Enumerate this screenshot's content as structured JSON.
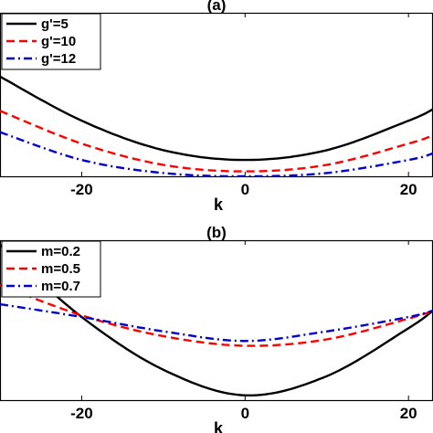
{
  "chart_data": [
    {
      "type": "line",
      "panel_label": "(a)",
      "xlabel": "k",
      "ylabel": "",
      "xlim": [
        -30,
        23
      ],
      "ylim": [
        0,
        1
      ],
      "xticks": [
        -20,
        0,
        20
      ],
      "xtick_labels": [
        "-20",
        "0",
        "20"
      ],
      "legend_placement": "top-left",
      "grid": false,
      "series": [
        {
          "name": "g'=5",
          "color": "#000000",
          "dash": "solid",
          "values": [
            [
              -30,
              0.61
            ],
            [
              -20,
              0.34
            ],
            [
              -10,
              0.16
            ],
            [
              0,
              0.1
            ],
            [
              10,
              0.16
            ],
            [
              20,
              0.34
            ],
            [
              23,
              0.41
            ]
          ]
        },
        {
          "name": "g'=10",
          "color": "#ff0000",
          "dash": "dashed",
          "values": [
            [
              -30,
              0.4
            ],
            [
              -20,
              0.2
            ],
            [
              -10,
              0.07
            ],
            [
              0,
              0.03
            ],
            [
              10,
              0.07
            ],
            [
              20,
              0.2
            ],
            [
              23,
              0.25
            ]
          ]
        },
        {
          "name": "g'=12",
          "color": "#0000cc",
          "dash": "dash-dot",
          "values": [
            [
              -30,
              0.27
            ],
            [
              -20,
              0.1
            ],
            [
              -10,
              0.02
            ],
            [
              0,
              0.0
            ],
            [
              10,
              0.02
            ],
            [
              20,
              0.1
            ],
            [
              23,
              0.14
            ]
          ]
        }
      ]
    },
    {
      "type": "line",
      "panel_label": "(b)",
      "xlabel": "k",
      "ylabel": "",
      "xlim": [
        -30,
        23
      ],
      "ylim": [
        0,
        1
      ],
      "xticks": [
        -20,
        0,
        20
      ],
      "xtick_labels": [
        "-20",
        "0",
        "20"
      ],
      "legend_placement": "top-left",
      "grid": false,
      "series": [
        {
          "name": "m=0.2",
          "color": "#000000",
          "dash": "solid",
          "values": [
            [
              -30,
              0.97
            ],
            [
              -20,
              0.52
            ],
            [
              -10,
              0.19
            ],
            [
              0,
              0.03
            ],
            [
              10,
              0.15
            ],
            [
              20,
              0.45
            ],
            [
              23,
              0.56
            ]
          ]
        },
        {
          "name": "m=0.5",
          "color": "#ff0000",
          "dash": "dashed",
          "values": [
            [
              -30,
              0.72
            ],
            [
              -20,
              0.53
            ],
            [
              -10,
              0.4
            ],
            [
              0,
              0.34
            ],
            [
              10,
              0.38
            ],
            [
              20,
              0.51
            ],
            [
              23,
              0.56
            ]
          ]
        },
        {
          "name": "m=0.7",
          "color": "#0000cc",
          "dash": "dash-dot",
          "values": [
            [
              -30,
              0.6
            ],
            [
              -20,
              0.52
            ],
            [
              -10,
              0.43
            ],
            [
              0,
              0.37
            ],
            [
              10,
              0.43
            ],
            [
              20,
              0.52
            ],
            [
              23,
              0.56
            ]
          ]
        }
      ]
    }
  ]
}
